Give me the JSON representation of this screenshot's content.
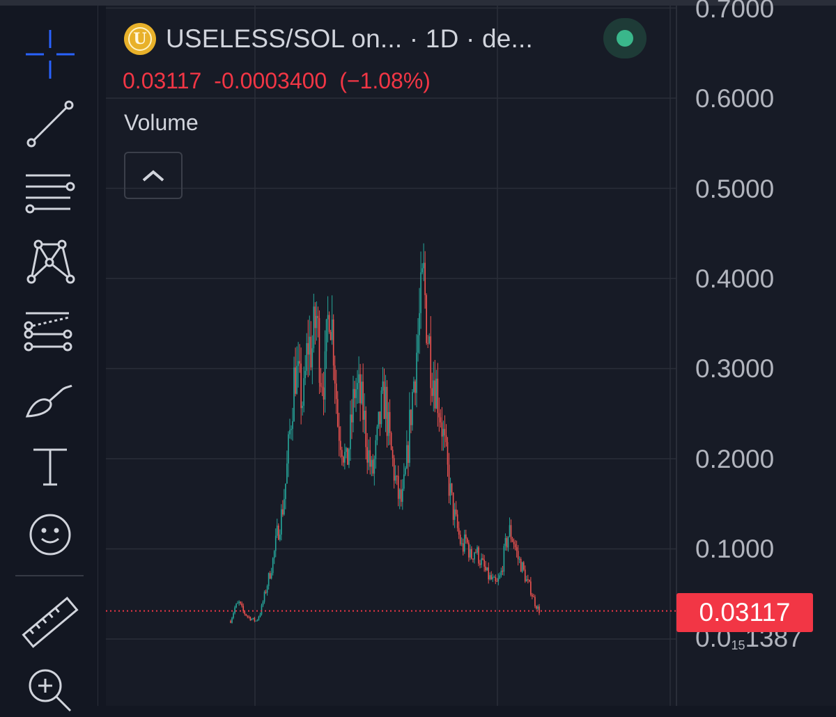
{
  "toolbar": {
    "tools": [
      "crosshair-icon",
      "trend-line-icon",
      "horizontal-lines-icon",
      "pattern-icon",
      "forecast-icon",
      "brush-icon",
      "text-icon",
      "emoji-icon",
      "ruler-icon",
      "zoom-in-icon"
    ],
    "active_tool_color": "#2962ff"
  },
  "header": {
    "coin_icon_letter": "U",
    "symbol_title": "USELESS/SOL on... · 1D · de...",
    "status_color": "#3ab78b"
  },
  "price_line": {
    "last": "0.03117",
    "change": "-0.0003400",
    "change_pct": "(−1.08%)"
  },
  "volume": {
    "label": "Volume"
  },
  "axis": {
    "labels": [
      "0.7000",
      "0.6000",
      "0.5000",
      "0.4000",
      "0.3000",
      "0.2000",
      "0.1000"
    ],
    "bottom_prefix": "0.0",
    "bottom_sub": "15",
    "bottom_suffix": "1387",
    "last_price_tag": "0.03117"
  },
  "colors": {
    "up": "#26a69a",
    "down": "#ef5350",
    "bg": "#171b26",
    "grid": "#2a2e39",
    "last_price": "#f23645"
  },
  "chart_data": {
    "type": "candlestick",
    "title": "USELESS/SOL on... · 1D · de...",
    "interval": "1D",
    "ylim": [
      0.0,
      0.7
    ],
    "yticks": [
      0.1,
      0.2,
      0.3,
      0.4,
      0.5,
      0.6,
      0.7
    ],
    "last_price": 0.03117,
    "grid": true,
    "close_path": [
      0.02,
      0.035,
      0.04,
      0.03,
      0.025,
      0.022,
      0.02,
      0.03,
      0.05,
      0.07,
      0.09,
      0.12,
      0.14,
      0.18,
      0.24,
      0.3,
      0.28,
      0.26,
      0.33,
      0.32,
      0.36,
      0.3,
      0.29,
      0.38,
      0.33,
      0.24,
      0.22,
      0.19,
      0.23,
      0.28,
      0.27,
      0.25,
      0.21,
      0.18,
      0.21,
      0.25,
      0.27,
      0.22,
      0.19,
      0.16,
      0.15,
      0.19,
      0.25,
      0.3,
      0.35,
      0.4,
      0.34,
      0.3,
      0.28,
      0.25,
      0.21,
      0.17,
      0.14,
      0.12,
      0.1,
      0.11,
      0.09,
      0.1,
      0.09,
      0.08,
      0.07,
      0.065,
      0.06,
      0.07,
      0.1,
      0.12,
      0.11,
      0.09,
      0.08,
      0.065,
      0.055,
      0.04,
      0.03117
    ]
  }
}
